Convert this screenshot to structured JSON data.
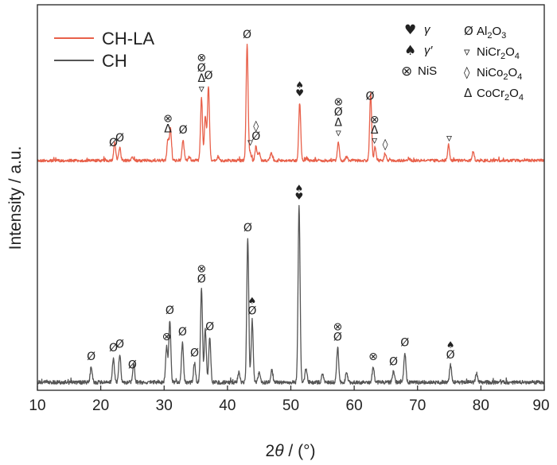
{
  "chart_data": {
    "type": "line",
    "xlabel_prefix": "2",
    "xlabel_theta": "θ",
    "xlabel_suffix": " / (°)",
    "ylabel": "Intensity / a.u.",
    "xlim": [
      10,
      90
    ],
    "xticks": [
      "10",
      "20",
      "30",
      "40",
      "50",
      "60",
      "70",
      "80",
      "90"
    ],
    "grid": false,
    "legend_position": "top-left",
    "series": [
      {
        "name": "CH-LA",
        "color": "#e8604a",
        "peaks": [
          [
            22.2,
            14
          ],
          [
            23.0,
            10
          ],
          [
            25.0,
            3
          ],
          [
            30.6,
            16
          ],
          [
            31.0,
            24
          ],
          [
            33.0,
            16
          ],
          [
            34.0,
            3
          ],
          [
            35.9,
            48
          ],
          [
            36.5,
            35
          ],
          [
            37.0,
            58
          ],
          [
            38.5,
            3
          ],
          [
            43.1,
            90
          ],
          [
            43.6,
            6
          ],
          [
            44.5,
            11
          ],
          [
            45.0,
            6
          ],
          [
            46.9,
            6
          ],
          [
            51.4,
            45
          ],
          [
            52.5,
            2
          ],
          [
            57.5,
            14
          ],
          [
            58.8,
            3
          ],
          [
            62.6,
            52
          ],
          [
            63.3,
            10
          ],
          [
            64.9,
            5
          ],
          [
            68.6,
            2
          ],
          [
            74.9,
            12
          ],
          [
            78.8,
            6
          ]
        ]
      },
      {
        "name": "CH",
        "color": "#555555",
        "peaks": [
          [
            18.5,
            9
          ],
          [
            22.0,
            14
          ],
          [
            23.0,
            16
          ],
          [
            25.2,
            10
          ],
          [
            30.4,
            20
          ],
          [
            30.9,
            35
          ],
          [
            32.9,
            23
          ],
          [
            34.8,
            11
          ],
          [
            35.9,
            53
          ],
          [
            36.5,
            30
          ],
          [
            37.2,
            26
          ],
          [
            41.8,
            6
          ],
          [
            43.2,
            82
          ],
          [
            43.9,
            35
          ],
          [
            45.0,
            6
          ],
          [
            47.0,
            7
          ],
          [
            51.3,
            100
          ],
          [
            52.4,
            8
          ],
          [
            55.0,
            5
          ],
          [
            57.4,
            20
          ],
          [
            58.8,
            6
          ],
          [
            63.0,
            9
          ],
          [
            66.2,
            6
          ],
          [
            68.0,
            17
          ],
          [
            75.2,
            10
          ],
          [
            79.3,
            5
          ]
        ]
      }
    ]
  },
  "legend": {
    "items": [
      {
        "label": "CH-LA",
        "color": "#e8604a"
      },
      {
        "label": "CH",
        "color": "#555555"
      }
    ]
  },
  "phase_key": {
    "gamma_label": "γ",
    "gamma_prime_label": "γ′",
    "nis_label": "NiS",
    "al2o3_pre": "Al",
    "al2o3_s1": "2",
    "al2o3_mid": "O",
    "al2o3_s2": "3",
    "nicr_pre": "NiCr",
    "nicr_s1": "2",
    "nicr_mid": "O",
    "nicr_s2": "4",
    "nico_pre": "NiCo",
    "nico_s1": "2",
    "nico_mid": "O",
    "nico_s2": "4",
    "cocr_pre": "CoCr",
    "cocr_s1": "2",
    "cocr_mid": "O",
    "cocr_s2": "4"
  },
  "symbols": {
    "al2o3": "Ø",
    "nicr2o4": "▿",
    "nico2o4": "◊",
    "cocr2o4": "Δ",
    "nis": "⊗",
    "gamma": "♥",
    "gamma_prime": "♠"
  },
  "annotations": {
    "chla": [
      {
        "x": 22.0,
        "marks": [
          "al2o3"
        ]
      },
      {
        "x": 23.0,
        "marks": [
          "al2o3"
        ]
      },
      {
        "x": 30.6,
        "marks": [
          "cocr2o4",
          "nis"
        ]
      },
      {
        "x": 33.0,
        "marks": [
          "al2o3"
        ]
      },
      {
        "x": 35.9,
        "marks": [
          "nicr2o4",
          "cocr2o4",
          "al2o3",
          "nis"
        ]
      },
      {
        "x": 37.0,
        "marks": [
          "al2o3"
        ]
      },
      {
        "x": 43.1,
        "marks": [
          "al2o3"
        ]
      },
      {
        "x": 43.6,
        "marks": [
          "nicr2o4"
        ]
      },
      {
        "x": 44.5,
        "marks": [
          "al2o3",
          "nico2o4"
        ]
      },
      {
        "x": 51.4,
        "marks": [
          "gamma",
          "gamma_prime"
        ]
      },
      {
        "x": 57.5,
        "marks": [
          "nicr2o4",
          "cocr2o4",
          "al2o3",
          "nis"
        ]
      },
      {
        "x": 62.5,
        "marks": [
          "al2o3"
        ]
      },
      {
        "x": 63.2,
        "marks": [
          "nicr2o4",
          "cocr2o4",
          "nis"
        ]
      },
      {
        "x": 64.9,
        "marks": [
          "nico2o4"
        ]
      },
      {
        "x": 75.0,
        "marks": [
          "nicr2o4"
        ]
      }
    ],
    "ch": [
      {
        "x": 18.5,
        "marks": [
          "al2o3"
        ]
      },
      {
        "x": 22.0,
        "marks": [
          "al2o3"
        ]
      },
      {
        "x": 23.0,
        "marks": [
          "al2o3"
        ]
      },
      {
        "x": 25.0,
        "marks": [
          "al2o3"
        ]
      },
      {
        "x": 30.4,
        "marks": [
          "nis"
        ]
      },
      {
        "x": 30.9,
        "marks": [
          "al2o3"
        ]
      },
      {
        "x": 32.9,
        "marks": [
          "al2o3"
        ]
      },
      {
        "x": 34.8,
        "marks": [
          "al2o3"
        ]
      },
      {
        "x": 35.9,
        "marks": [
          "al2o3",
          "nis"
        ]
      },
      {
        "x": 37.2,
        "marks": [
          "al2o3"
        ]
      },
      {
        "x": 43.2,
        "marks": [
          "al2o3"
        ]
      },
      {
        "x": 43.9,
        "marks": [
          "al2o3",
          "gamma_prime"
        ]
      },
      {
        "x": 51.3,
        "marks": [
          "gamma",
          "gamma_prime"
        ]
      },
      {
        "x": 57.4,
        "marks": [
          "al2o3",
          "nis"
        ]
      },
      {
        "x": 63.0,
        "marks": [
          "nis"
        ]
      },
      {
        "x": 66.2,
        "marks": [
          "al2o3"
        ]
      },
      {
        "x": 68.0,
        "marks": [
          "al2o3"
        ]
      },
      {
        "x": 75.2,
        "marks": [
          "al2o3",
          "gamma_prime"
        ]
      }
    ]
  }
}
